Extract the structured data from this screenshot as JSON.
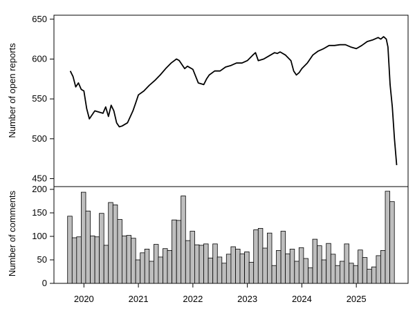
{
  "chart_data": [
    {
      "type": "line",
      "ylabel": "Number of open reports",
      "ylim": [
        440,
        655
      ],
      "yticks": [
        450,
        500,
        550,
        600,
        650
      ],
      "x": [
        2019.75,
        2019.8,
        2019.85,
        2019.9,
        2019.95,
        2020.0,
        2020.05,
        2020.1,
        2020.15,
        2020.2,
        2020.3,
        2020.35,
        2020.4,
        2020.45,
        2020.5,
        2020.55,
        2020.6,
        2020.65,
        2020.7,
        2020.8,
        2020.9,
        2020.95,
        2021.0,
        2021.1,
        2021.2,
        2021.3,
        2021.4,
        2021.5,
        2021.6,
        2021.7,
        2021.75,
        2021.8,
        2021.85,
        2021.9,
        2022.0,
        2022.1,
        2022.2,
        2022.25,
        2022.3,
        2022.4,
        2022.5,
        2022.6,
        2022.7,
        2022.8,
        2022.9,
        2023.0,
        2023.1,
        2023.15,
        2023.2,
        2023.3,
        2023.4,
        2023.5,
        2023.55,
        2023.6,
        2023.7,
        2023.8,
        2023.85,
        2023.9,
        2023.95,
        2024.0,
        2024.1,
        2024.2,
        2024.3,
        2024.4,
        2024.5,
        2024.6,
        2024.7,
        2024.8,
        2024.9,
        2025.0,
        2025.1,
        2025.2,
        2025.3,
        2025.4,
        2025.45,
        2025.5,
        2025.55,
        2025.58,
        2025.62,
        2025.66,
        2025.7,
        2025.74
      ],
      "y": [
        585,
        578,
        565,
        570,
        562,
        560,
        538,
        525,
        530,
        535,
        533,
        532,
        540,
        528,
        542,
        535,
        520,
        515,
        516,
        520,
        535,
        545,
        555,
        560,
        567,
        573,
        580,
        588,
        595,
        600,
        598,
        593,
        588,
        591,
        587,
        570,
        568,
        575,
        580,
        585,
        585,
        590,
        592,
        595,
        595,
        598,
        605,
        608,
        598,
        600,
        604,
        608,
        607,
        609,
        605,
        598,
        585,
        580,
        583,
        588,
        595,
        605,
        610,
        613,
        617,
        617,
        618,
        618,
        615,
        613,
        617,
        622,
        624,
        627,
        625,
        628,
        625,
        615,
        568,
        540,
        500,
        467
      ]
    },
    {
      "type": "bar",
      "ylabel": "Number of comments",
      "ylim": [
        0,
        200
      ],
      "yticks": [
        0,
        50,
        100,
        150,
        200
      ],
      "bar_start": 2019.7,
      "bar_width_years": 0.0833,
      "values": [
        143,
        97,
        99,
        194,
        154,
        101,
        99,
        149,
        81,
        172,
        167,
        136,
        101,
        102,
        96,
        50,
        65,
        73,
        47,
        83,
        56,
        74,
        70,
        135,
        134,
        186,
        91,
        111,
        82,
        81,
        84,
        54,
        84,
        56,
        43,
        62,
        78,
        73,
        63,
        67,
        45,
        114,
        117,
        75,
        107,
        38,
        70,
        111,
        63,
        73,
        47,
        76,
        53,
        33,
        94,
        80,
        50,
        85,
        62,
        38,
        47,
        84,
        43,
        38,
        71,
        55,
        30,
        35,
        59,
        70,
        196,
        174
      ]
    }
  ],
  "x_axis": {
    "ticks": [
      2020,
      2021,
      2022,
      2023,
      2024,
      2025
    ],
    "labels": [
      "2020",
      "2021",
      "2022",
      "2023",
      "2024",
      "2025"
    ],
    "range": [
      2019.45,
      2025.95
    ]
  },
  "colors": {
    "line": "#000000",
    "bar_fill": "#bebebe",
    "bar_stroke": "#000000",
    "frame": "#000000"
  }
}
